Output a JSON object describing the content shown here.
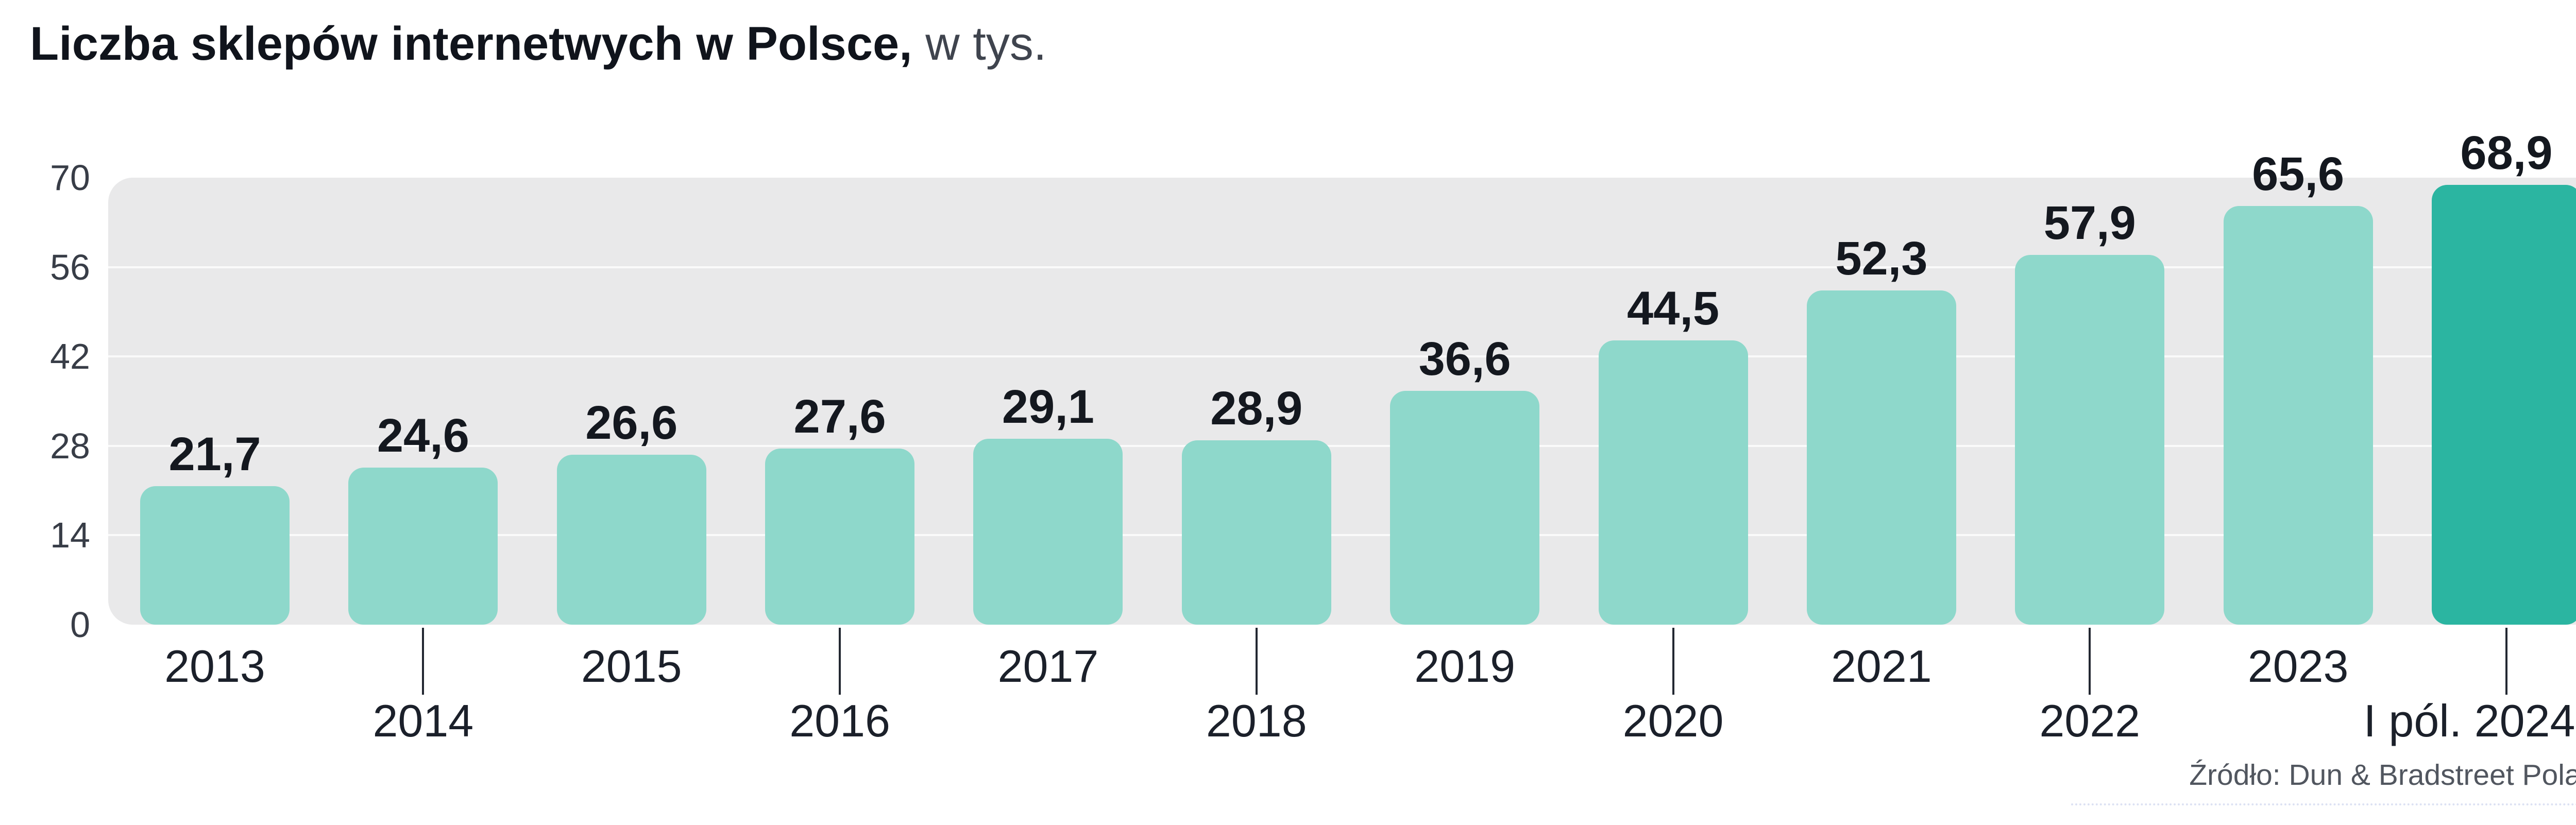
{
  "title": {
    "main": "Liczba sklepów internetwych w Polsce,",
    "suffix": " w tys."
  },
  "source": "Źródło: Dun & Bradstreet Poland",
  "colors": {
    "bar_light": "#8ed8cb",
    "bar_highlight": "#2bb5a1",
    "plot_background": "#e9e9ea",
    "gridline": "#fafafa",
    "value_label": "#14181f",
    "axis_label": "#383d47",
    "year_label": "#1b202a",
    "tick_line": "#232832",
    "source_text": "#51565f"
  },
  "chart_data": {
    "type": "bar",
    "title": "Liczba sklepów internetwych w Polsce, w tys.",
    "xlabel": "",
    "ylabel": "",
    "categories": [
      "2013",
      "2014",
      "2015",
      "2016",
      "2017",
      "2018",
      "2019",
      "2020",
      "2021",
      "2022",
      "2023",
      "I pól. 2024"
    ],
    "values": [
      21.7,
      24.6,
      26.6,
      27.6,
      29.1,
      28.9,
      36.6,
      44.5,
      52.3,
      57.9,
      65.6,
      68.9
    ],
    "value_labels": [
      "21,7",
      "24,6",
      "26,6",
      "27,6",
      "29,1",
      "28,9",
      "36,6",
      "44,5",
      "52,3",
      "57,9",
      "65,6",
      "68,9"
    ],
    "ylim": [
      0,
      70
    ],
    "yticks": [
      0,
      14,
      28,
      42,
      56,
      70
    ],
    "ytick_labels": [
      "0",
      "14",
      "28",
      "42",
      "56",
      "70"
    ],
    "grid": true,
    "legend": false,
    "highlight_index": 11,
    "highlight_meaning": "first half of 2024 shown in darker teal"
  }
}
